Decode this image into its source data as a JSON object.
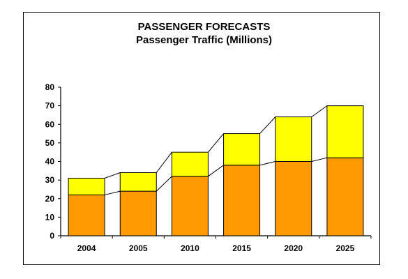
{
  "chart_data": {
    "type": "bar",
    "stacked": true,
    "title": "PASSENGER FORECASTS",
    "subtitle": "Passenger Traffic (Millions)",
    "categories": [
      "2004",
      "2005",
      "2010",
      "2015",
      "2020",
      "2025"
    ],
    "series": [
      {
        "values": [
          22,
          24,
          32,
          38,
          40,
          42
        ]
      },
      {
        "values": [
          9,
          10,
          13,
          17,
          24,
          28
        ]
      }
    ],
    "ylim": [
      0,
      80
    ],
    "yticks": [
      "0",
      "10",
      "20",
      "30",
      "40",
      "50",
      "60",
      "70",
      "80"
    ],
    "grid": false,
    "legend": "none"
  },
  "colors": {
    "series0": "#ff9900",
    "series1": "#ffff00",
    "edge": "#000000"
  }
}
